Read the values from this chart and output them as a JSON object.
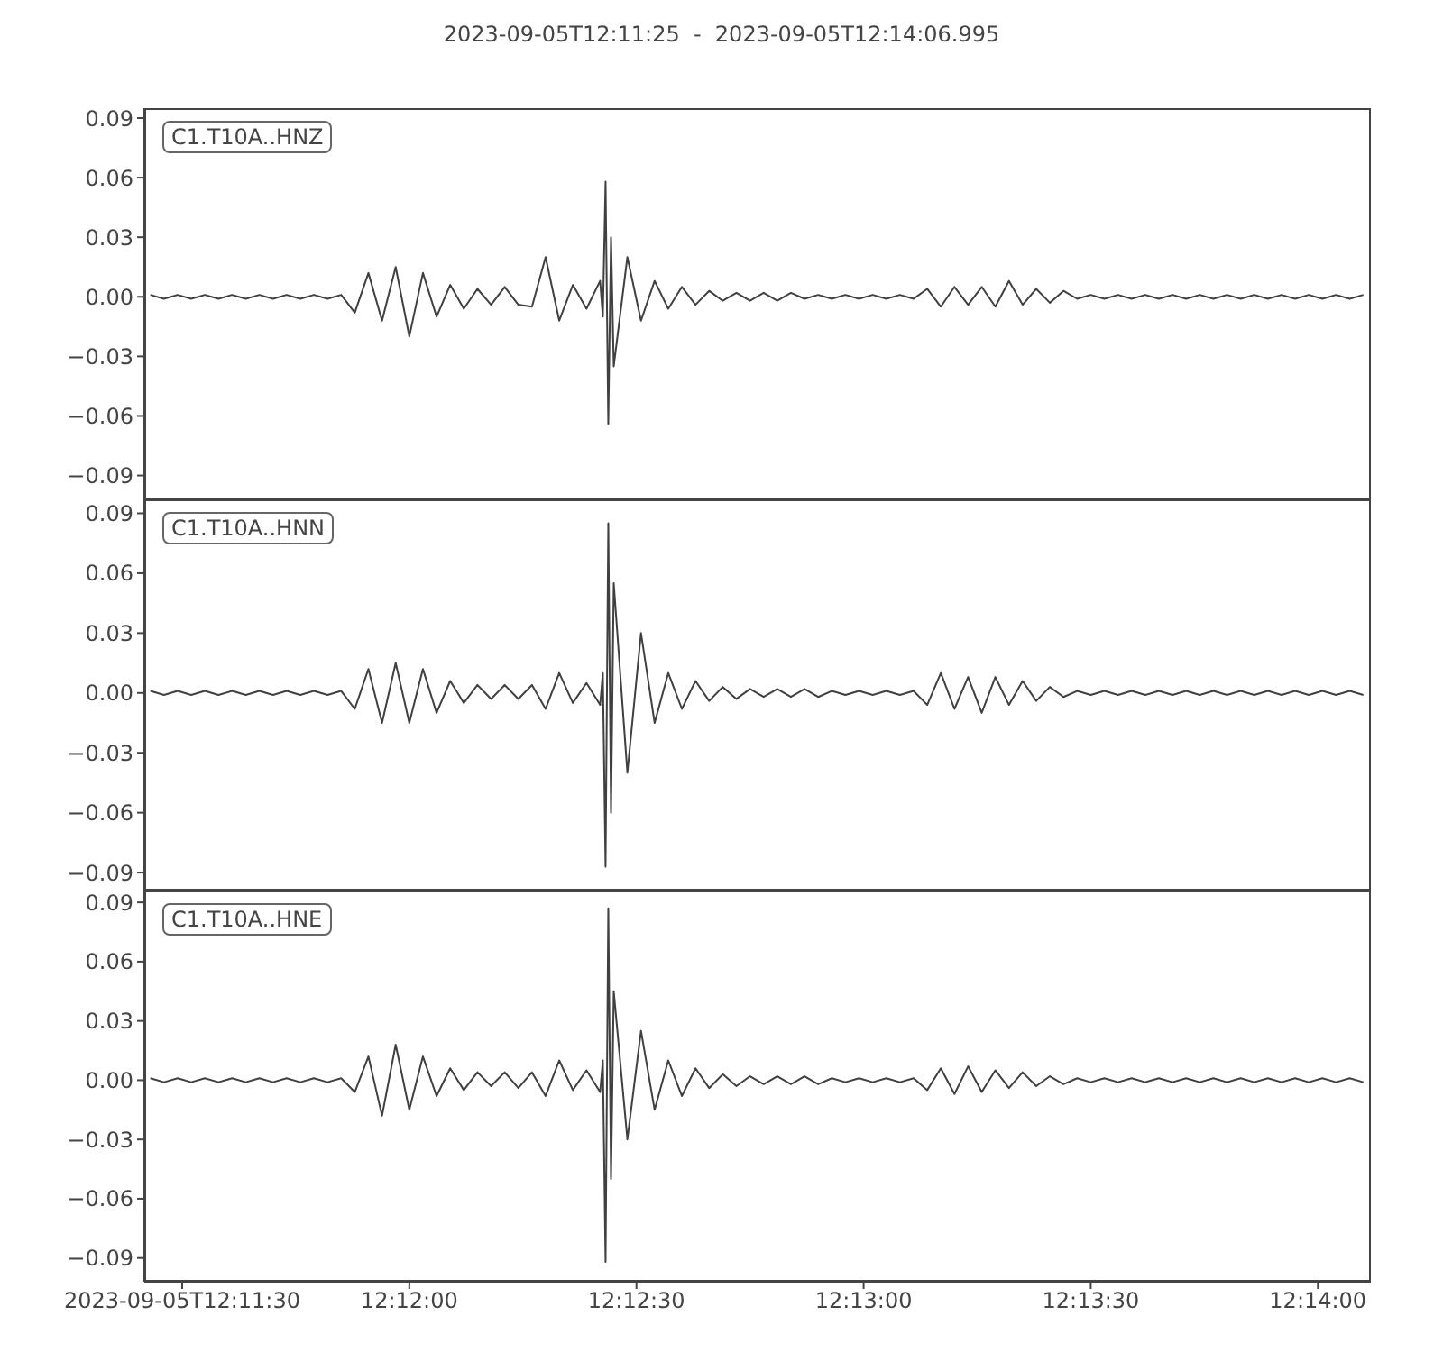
{
  "chart_data": [
    {
      "type": "line",
      "title": "2023-09-05T12:11:25  -  2023-09-05T12:14:06.995",
      "annotations": [
        "C1.T10A..HNZ"
      ],
      "color": "#404040",
      "tick_labels": "y",
      "xlim": [
        12.190278,
        12.235276
      ],
      "xticks": [
        {
          "value": 12.191667,
          "label": null
        },
        {
          "value": 12.2,
          "label": null
        },
        {
          "value": 12.208333,
          "label": null
        },
        {
          "value": 12.216667,
          "label": null
        },
        {
          "value": 12.225,
          "label": null
        },
        {
          "value": 12.233333,
          "label": null
        }
      ],
      "ylim": [
        -0.102,
        0.095
      ],
      "yticks": [
        {
          "value": 0.09,
          "label": "0.09"
        },
        {
          "value": 0.06,
          "label": "0.06"
        },
        {
          "value": 0.03,
          "label": "0.03"
        },
        {
          "value": 0,
          "label": "0.00"
        },
        {
          "value": -0.03,
          "label": "−0.03"
        },
        {
          "value": -0.06,
          "label": "−0.06"
        },
        {
          "value": -0.09,
          "label": "−0.09"
        }
      ],
      "x": [
        12.1905,
        12.191,
        12.1915,
        12.192,
        12.1925,
        12.193,
        12.1935,
        12.194,
        12.1945,
        12.195,
        12.1955,
        12.196,
        12.1965,
        12.197,
        12.1975,
        12.198,
        12.1985,
        12.199,
        12.1995,
        12.2,
        12.2005,
        12.201,
        12.2015,
        12.202,
        12.2025,
        12.203,
        12.2035,
        12.204,
        12.2045,
        12.205,
        12.2055,
        12.206,
        12.2065,
        12.207,
        12.2071,
        12.2072,
        12.2073,
        12.2074,
        12.2075,
        12.208,
        12.2085,
        12.209,
        12.2095,
        12.21,
        12.2105,
        12.211,
        12.2115,
        12.212,
        12.2125,
        12.213,
        12.2135,
        12.214,
        12.2145,
        12.215,
        12.2155,
        12.216,
        12.2165,
        12.217,
        12.2175,
        12.218,
        12.2185,
        12.219,
        12.2195,
        12.22,
        12.2205,
        12.221,
        12.2215,
        12.222,
        12.2225,
        12.223,
        12.2235,
        12.224,
        12.2245,
        12.225,
        12.2255,
        12.226,
        12.2265,
        12.227,
        12.2275,
        12.228,
        12.2285,
        12.229,
        12.2295,
        12.23,
        12.2305,
        12.231,
        12.2315,
        12.232,
        12.2325,
        12.233,
        12.2335,
        12.234,
        12.2345,
        12.235
      ],
      "values": [
        0.001,
        -0.001,
        0.001,
        -0.001,
        0.001,
        -0.001,
        0.001,
        -0.001,
        0.001,
        -0.001,
        0.001,
        -0.001,
        0.001,
        -0.001,
        0.001,
        -0.008,
        0.012,
        -0.012,
        0.015,
        -0.02,
        0.012,
        -0.01,
        0.006,
        -0.006,
        0.004,
        -0.004,
        0.005,
        -0.004,
        -0.005,
        0.02,
        -0.012,
        0.006,
        -0.006,
        0.008,
        -0.01,
        0.058,
        -0.064,
        0.03,
        -0.035,
        0.02,
        -0.012,
        0.008,
        -0.006,
        0.005,
        -0.004,
        0.003,
        -0.002,
        0.002,
        -0.002,
        0.002,
        -0.002,
        0.002,
        -0.001,
        0.001,
        -0.001,
        0.001,
        -0.001,
        0.001,
        -0.001,
        0.001,
        -0.001,
        0.004,
        -0.005,
        0.005,
        -0.004,
        0.005,
        -0.005,
        0.008,
        -0.004,
        0.004,
        -0.003,
        0.003,
        -0.001,
        0.001,
        -0.001,
        0.001,
        -0.001,
        0.001,
        -0.001,
        0.001,
        -0.001,
        0.001,
        -0.001,
        0.001,
        -0.001,
        0.001,
        -0.001,
        0.001,
        -0.001,
        0.001,
        -0.001,
        0.001,
        -0.001,
        0.001
      ]
    },
    {
      "type": "line",
      "annotations": [
        "C1.T10A..HNN"
      ],
      "color": "#404040",
      "tick_labels": "y",
      "xlim": [
        12.190278,
        12.235276
      ],
      "xticks": [
        {
          "value": 12.191667,
          "label": null
        },
        {
          "value": 12.2,
          "label": null
        },
        {
          "value": 12.208333,
          "label": null
        },
        {
          "value": 12.216667,
          "label": null
        },
        {
          "value": 12.225,
          "label": null
        },
        {
          "value": 12.233333,
          "label": null
        }
      ],
      "ylim": [
        -0.099,
        0.097
      ],
      "yticks": [
        {
          "value": 0.09,
          "label": "0.09"
        },
        {
          "value": 0.06,
          "label": "0.06"
        },
        {
          "value": 0.03,
          "label": "0.03"
        },
        {
          "value": 0,
          "label": "0.00"
        },
        {
          "value": -0.03,
          "label": "−0.03"
        },
        {
          "value": -0.06,
          "label": "−0.06"
        },
        {
          "value": -0.09,
          "label": "−0.09"
        }
      ],
      "x": [
        12.1905,
        12.191,
        12.1915,
        12.192,
        12.1925,
        12.193,
        12.1935,
        12.194,
        12.1945,
        12.195,
        12.1955,
        12.196,
        12.1965,
        12.197,
        12.1975,
        12.198,
        12.1985,
        12.199,
        12.1995,
        12.2,
        12.2005,
        12.201,
        12.2015,
        12.202,
        12.2025,
        12.203,
        12.2035,
        12.204,
        12.2045,
        12.205,
        12.2055,
        12.206,
        12.2065,
        12.207,
        12.2071,
        12.2072,
        12.2073,
        12.2074,
        12.2075,
        12.208,
        12.2085,
        12.209,
        12.2095,
        12.21,
        12.2105,
        12.211,
        12.2115,
        12.212,
        12.2125,
        12.213,
        12.2135,
        12.214,
        12.2145,
        12.215,
        12.2155,
        12.216,
        12.2165,
        12.217,
        12.2175,
        12.218,
        12.2185,
        12.219,
        12.2195,
        12.22,
        12.2205,
        12.221,
        12.2215,
        12.222,
        12.2225,
        12.223,
        12.2235,
        12.224,
        12.2245,
        12.225,
        12.2255,
        12.226,
        12.2265,
        12.227,
        12.2275,
        12.228,
        12.2285,
        12.229,
        12.2295,
        12.23,
        12.2305,
        12.231,
        12.2315,
        12.232,
        12.2325,
        12.233,
        12.2335,
        12.234,
        12.2345,
        12.235
      ],
      "values": [
        0.001,
        -0.001,
        0.001,
        -0.001,
        0.001,
        -0.001,
        0.001,
        -0.001,
        0.001,
        -0.001,
        0.001,
        -0.001,
        0.001,
        -0.001,
        0.001,
        -0.008,
        0.012,
        -0.015,
        0.015,
        -0.015,
        0.012,
        -0.01,
        0.006,
        -0.005,
        0.004,
        -0.003,
        0.004,
        -0.003,
        0.004,
        -0.008,
        0.01,
        -0.005,
        0.005,
        -0.006,
        0.01,
        -0.087,
        0.085,
        -0.06,
        0.055,
        -0.04,
        0.03,
        -0.015,
        0.01,
        -0.008,
        0.006,
        -0.004,
        0.003,
        -0.003,
        0.002,
        -0.002,
        0.002,
        -0.002,
        0.002,
        -0.002,
        0.001,
        -0.001,
        0.001,
        -0.001,
        0.001,
        -0.001,
        0.001,
        -0.006,
        0.01,
        -0.008,
        0.008,
        -0.01,
        0.008,
        -0.006,
        0.006,
        -0.004,
        0.003,
        -0.002,
        0.001,
        -0.001,
        0.001,
        -0.001,
        0.001,
        -0.001,
        0.001,
        -0.001,
        0.001,
        -0.001,
        0.001,
        -0.001,
        0.001,
        -0.001,
        0.001,
        -0.001,
        0.001,
        -0.001,
        0.001,
        -0.001,
        0.001,
        -0.001
      ]
    },
    {
      "type": "line",
      "annotations": [
        "C1.T10A..HNE"
      ],
      "color": "#404040",
      "xlim": [
        12.190278,
        12.235276
      ],
      "xticks": [
        {
          "value": 12.191667,
          "label": "2023-09-05T12:11:30"
        },
        {
          "value": 12.2,
          "label": "12:12:00"
        },
        {
          "value": 12.208333,
          "label": "12:12:30"
        },
        {
          "value": 12.216667,
          "label": "12:13:00"
        },
        {
          "value": 12.225,
          "label": "12:13:30"
        },
        {
          "value": 12.233333,
          "label": "12:14:00"
        }
      ],
      "ylim": [
        -0.102,
        0.096
      ],
      "yticks": [
        {
          "value": 0.09,
          "label": "0.09"
        },
        {
          "value": 0.06,
          "label": "0.06"
        },
        {
          "value": 0.03,
          "label": "0.03"
        },
        {
          "value": 0,
          "label": "0.00"
        },
        {
          "value": -0.03,
          "label": "−0.03"
        },
        {
          "value": -0.06,
          "label": "−0.06"
        },
        {
          "value": -0.09,
          "label": "−0.09"
        }
      ],
      "x": [
        12.1905,
        12.191,
        12.1915,
        12.192,
        12.1925,
        12.193,
        12.1935,
        12.194,
        12.1945,
        12.195,
        12.1955,
        12.196,
        12.1965,
        12.197,
        12.1975,
        12.198,
        12.1985,
        12.199,
        12.1995,
        12.2,
        12.2005,
        12.201,
        12.2015,
        12.202,
        12.2025,
        12.203,
        12.2035,
        12.204,
        12.2045,
        12.205,
        12.2055,
        12.206,
        12.2065,
        12.207,
        12.2071,
        12.2072,
        12.2073,
        12.2074,
        12.2075,
        12.208,
        12.2085,
        12.209,
        12.2095,
        12.21,
        12.2105,
        12.211,
        12.2115,
        12.212,
        12.2125,
        12.213,
        12.2135,
        12.214,
        12.2145,
        12.215,
        12.2155,
        12.216,
        12.2165,
        12.217,
        12.2175,
        12.218,
        12.2185,
        12.219,
        12.2195,
        12.22,
        12.2205,
        12.221,
        12.2215,
        12.222,
        12.2225,
        12.223,
        12.2235,
        12.224,
        12.2245,
        12.225,
        12.2255,
        12.226,
        12.2265,
        12.227,
        12.2275,
        12.228,
        12.2285,
        12.229,
        12.2295,
        12.23,
        12.2305,
        12.231,
        12.2315,
        12.232,
        12.2325,
        12.233,
        12.2335,
        12.234,
        12.2345,
        12.235
      ],
      "values": [
        0.001,
        -0.001,
        0.001,
        -0.001,
        0.001,
        -0.001,
        0.001,
        -0.001,
        0.001,
        -0.001,
        0.001,
        -0.001,
        0.001,
        -0.001,
        0.001,
        -0.006,
        0.012,
        -0.018,
        0.018,
        -0.015,
        0.012,
        -0.008,
        0.006,
        -0.005,
        0.004,
        -0.003,
        0.004,
        -0.004,
        0.004,
        -0.008,
        0.01,
        -0.005,
        0.005,
        -0.006,
        0.01,
        -0.092,
        0.087,
        -0.05,
        0.045,
        -0.03,
        0.025,
        -0.015,
        0.01,
        -0.008,
        0.006,
        -0.004,
        0.003,
        -0.003,
        0.002,
        -0.002,
        0.002,
        -0.002,
        0.002,
        -0.002,
        0.001,
        -0.001,
        0.001,
        -0.001,
        0.001,
        -0.001,
        0.001,
        -0.005,
        0.006,
        -0.007,
        0.007,
        -0.006,
        0.005,
        -0.004,
        0.004,
        -0.003,
        0.002,
        -0.002,
        0.001,
        -0.001,
        0.001,
        -0.001,
        0.001,
        -0.001,
        0.001,
        -0.001,
        0.001,
        -0.001,
        0.001,
        -0.001,
        0.001,
        -0.001,
        0.001,
        -0.001,
        0.001,
        -0.001,
        0.001,
        -0.001,
        0.001,
        -0.001
      ]
    }
  ]
}
